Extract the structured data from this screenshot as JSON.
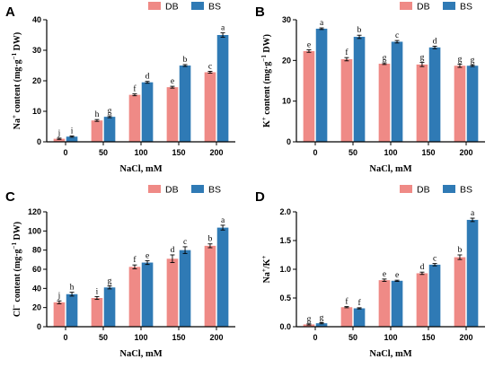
{
  "colors": {
    "DB": "#ef8a86",
    "BS": "#2f7ab5"
  },
  "chart_data": [
    {
      "type": "bar",
      "panel_letter": "A",
      "xlabel": "NaCl, mM",
      "ylabel_parts": [
        "Na",
        "+",
        " content (mg·g",
        "−1",
        " DW)"
      ],
      "categories": [
        "0",
        "50",
        "100",
        "150",
        "200"
      ],
      "ylim": [
        0,
        40
      ],
      "yticks": [
        0,
        10,
        20,
        30,
        40
      ],
      "ytick_labels": [
        "0",
        "10",
        "20",
        "30",
        "40"
      ],
      "legend": [
        "DB",
        "BS"
      ],
      "series": [
        {
          "name": "DB",
          "values": [
            1.0,
            7.0,
            15.4,
            17.9,
            22.8
          ],
          "errors": [
            0.2,
            0.3,
            0.3,
            0.3,
            0.3
          ],
          "letters": [
            "j",
            "h",
            "f",
            "e",
            "c"
          ]
        },
        {
          "name": "BS",
          "values": [
            1.7,
            8.2,
            19.5,
            25.0,
            35.0
          ],
          "errors": [
            0.2,
            0.3,
            0.3,
            0.3,
            0.7
          ],
          "letters": [
            "i",
            "g",
            "d",
            "b",
            "a"
          ]
        }
      ]
    },
    {
      "type": "bar",
      "panel_letter": "B",
      "xlabel": "NaCl, mM",
      "ylabel_parts": [
        "K",
        "+",
        " content (mg·g",
        "−1",
        " DW)"
      ],
      "categories": [
        "0",
        "50",
        "100",
        "150",
        "200"
      ],
      "ylim": [
        0,
        30
      ],
      "yticks": [
        0,
        10,
        20,
        30
      ],
      "ytick_labels": [
        "0",
        "10",
        "20",
        "30"
      ],
      "legend": [
        "DB",
        "BS"
      ],
      "series": [
        {
          "name": "DB",
          "values": [
            22.3,
            20.3,
            19.2,
            19.0,
            18.7
          ],
          "errors": [
            0.3,
            0.4,
            0.2,
            0.5,
            0.4
          ],
          "letters": [
            "e",
            "f",
            "g",
            "g",
            "g"
          ]
        },
        {
          "name": "BS",
          "values": [
            27.8,
            25.8,
            24.6,
            23.2,
            18.7
          ],
          "errors": [
            0.2,
            0.4,
            0.3,
            0.3,
            0.2
          ],
          "letters": [
            "a",
            "b",
            "c",
            "d",
            "g"
          ]
        }
      ]
    },
    {
      "type": "bar",
      "panel_letter": "C",
      "xlabel": "NaCl, mM",
      "ylabel_parts": [
        "Cl",
        "−",
        " content (mg·g",
        "−1",
        " DW)"
      ],
      "categories": [
        "0",
        "50",
        "100",
        "150",
        "200"
      ],
      "ylim": [
        0,
        120
      ],
      "yticks": [
        0,
        20,
        40,
        60,
        80,
        100,
        120
      ],
      "ytick_labels": [
        "0",
        "20",
        "40",
        "60",
        "80",
        "100",
        "120"
      ],
      "legend": [
        "DB",
        "BS"
      ],
      "series": [
        {
          "name": "DB",
          "values": [
            25.5,
            30.0,
            62.5,
            71.0,
            84.5
          ],
          "errors": [
            1.5,
            1.5,
            2.0,
            4.0,
            2.0
          ],
          "letters": [
            "j",
            "i",
            "f",
            "d",
            "b"
          ]
        },
        {
          "name": "BS",
          "values": [
            34.0,
            41.0,
            67.0,
            80.0,
            103.5
          ],
          "errors": [
            2.0,
            1.5,
            2.0,
            3.5,
            2.5
          ],
          "letters": [
            "h",
            "g",
            "e",
            "c",
            "a"
          ]
        }
      ]
    },
    {
      "type": "bar",
      "panel_letter": "D",
      "xlabel": "NaCl, mM",
      "ylabel_parts": [
        "Na",
        "+",
        "/K",
        "+",
        ""
      ],
      "categories": [
        "0",
        "50",
        "100",
        "150",
        "200"
      ],
      "ylim": [
        0,
        2.0
      ],
      "yticks": [
        0,
        0.5,
        1.0,
        1.5,
        2.0
      ],
      "ytick_labels": [
        "0.0",
        "0.5",
        "1.0",
        "1.5",
        "2.0"
      ],
      "legend": [
        "DB",
        "BS"
      ],
      "series": [
        {
          "name": "DB",
          "values": [
            0.04,
            0.34,
            0.81,
            0.93,
            1.21
          ],
          "errors": [
            0.01,
            0.01,
            0.02,
            0.02,
            0.04
          ],
          "letters": [
            "g",
            "f",
            "e",
            "d",
            "b"
          ]
        },
        {
          "name": "BS",
          "values": [
            0.06,
            0.32,
            0.8,
            1.08,
            1.86
          ],
          "errors": [
            0.01,
            0.01,
            0.01,
            0.02,
            0.03
          ],
          "letters": [
            "g",
            "f",
            "e",
            "c",
            "a"
          ]
        }
      ]
    }
  ]
}
